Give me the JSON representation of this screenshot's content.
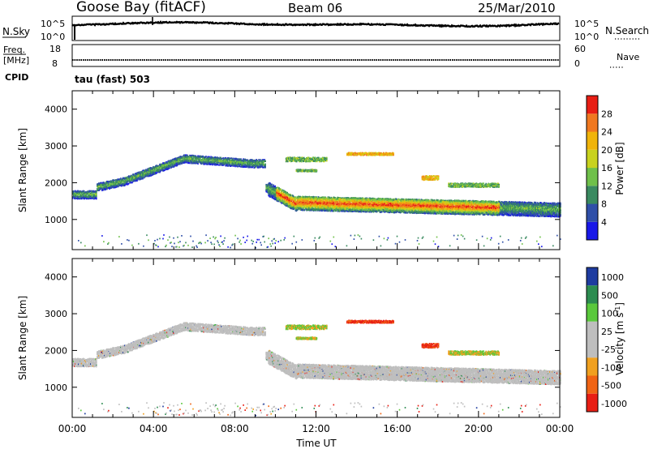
{
  "header": {
    "site": "Goose Bay (fitACF)",
    "beam": "Beam 06",
    "date": "25/Mar/2010"
  },
  "top_panel_labels": {
    "nsky": "N.Sky",
    "nsky_hi": "10^5",
    "nsky_lo": "10^0",
    "nsearch": "N.Search",
    "nsearch_hi": "10^5",
    "nsearch_lo": "10^0",
    "freq_line1": "Freq.",
    "freq_line2": "[MHz]",
    "freq_hi": "18",
    "freq_lo": "8",
    "nave": "Nave",
    "nave_hi": "60",
    "nave_lo": "0",
    "cpid": "CPID",
    "cpid_value": "tau (fast) 503"
  },
  "colors": {
    "power": [
      "#1818e8",
      "#2f4fa8",
      "#3a8a60",
      "#6fc04a",
      "#c8d21e",
      "#f0b40a",
      "#f07820",
      "#e81e14"
    ],
    "velocity": [
      "#e81e14",
      "#f06414",
      "#f0a020",
      "#bebebe",
      "#bebebe",
      "#5ac83c",
      "#2c8c50",
      "#1e3ca0"
    ],
    "ground_scatter": "#bebebe"
  },
  "chart_data": [
    {
      "type": "heatmap",
      "quantity": "Power",
      "ylabel": "Slant Range [km]",
      "y_ticks": [
        "1000",
        "2000",
        "3000",
        "4000"
      ],
      "ylim": [
        180,
        4500
      ],
      "xlim_hours": [
        0,
        24
      ],
      "colorbar_label": "Power [dB]",
      "colorbar_ticks": [
        "4",
        "8",
        "12",
        "16",
        "20",
        "24",
        "28"
      ],
      "colorbar_range": [
        0,
        32
      ]
    },
    {
      "type": "heatmap",
      "quantity": "Velocity",
      "ylabel": "Slant Range [km]",
      "y_ticks": [
        "1000",
        "2000",
        "3000",
        "4000"
      ],
      "ylim": [
        180,
        4500
      ],
      "xlim_hours": [
        0,
        24
      ],
      "xlabel": "Time UT",
      "x_ticks": [
        "00:00",
        "04:00",
        "08:00",
        "12:00",
        "16:00",
        "20:00",
        "00:00"
      ],
      "colorbar_label": "Velocity [m s",
      "colorbar_label_sup": "-1",
      "colorbar_label_end": "]",
      "colorbar_ticks": [
        "1000",
        "500",
        "100",
        "25",
        "-25",
        "-100",
        "-500",
        "-1000"
      ]
    }
  ]
}
